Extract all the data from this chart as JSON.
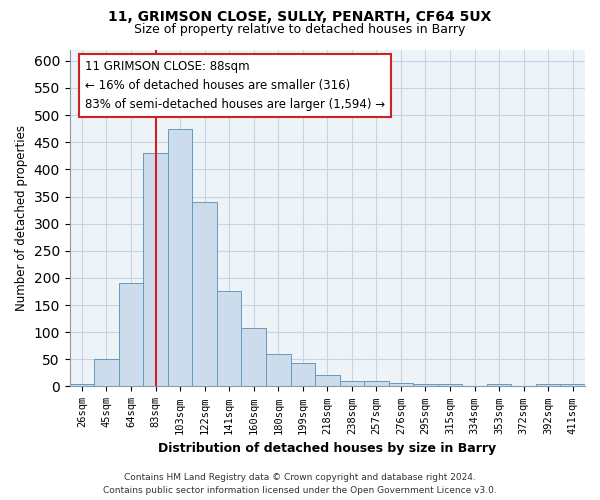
{
  "title": "11, GRIMSON CLOSE, SULLY, PENARTH, CF64 5UX",
  "subtitle": "Size of property relative to detached houses in Barry",
  "xlabel": "Distribution of detached houses by size in Barry",
  "ylabel": "Number of detached properties",
  "bar_labels": [
    "26sqm",
    "45sqm",
    "64sqm",
    "83sqm",
    "103sqm",
    "122sqm",
    "141sqm",
    "160sqm",
    "180sqm",
    "199sqm",
    "218sqm",
    "238sqm",
    "257sqm",
    "276sqm",
    "295sqm",
    "315sqm",
    "334sqm",
    "353sqm",
    "372sqm",
    "392sqm",
    "411sqm"
  ],
  "bar_values": [
    5,
    50,
    190,
    430,
    475,
    340,
    175,
    107,
    60,
    43,
    22,
    10,
    10,
    6,
    5,
    5,
    0,
    5,
    0,
    5,
    5
  ],
  "bar_color": "#ccdcec",
  "bar_edge_color": "#6699bb",
  "ylim": [
    0,
    620
  ],
  "yticks": [
    0,
    50,
    100,
    150,
    200,
    250,
    300,
    350,
    400,
    450,
    500,
    550,
    600
  ],
  "vline_index": 3,
  "vline_color": "#cc2222",
  "annotation_line1": "11 GRIMSON CLOSE: 88sqm",
  "annotation_line2": "← 16% of detached houses are smaller (316)",
  "annotation_line3": "83% of semi-detached houses are larger (1,594) →",
  "annotation_box_edge": "#cc2222",
  "footer_line1": "Contains HM Land Registry data © Crown copyright and database right 2024.",
  "footer_line2": "Contains public sector information licensed under the Open Government Licence v3.0.",
  "background_color": "#ffffff",
  "grid_color": "#c5d5e5",
  "axis_bg_color": "#eef3f8"
}
